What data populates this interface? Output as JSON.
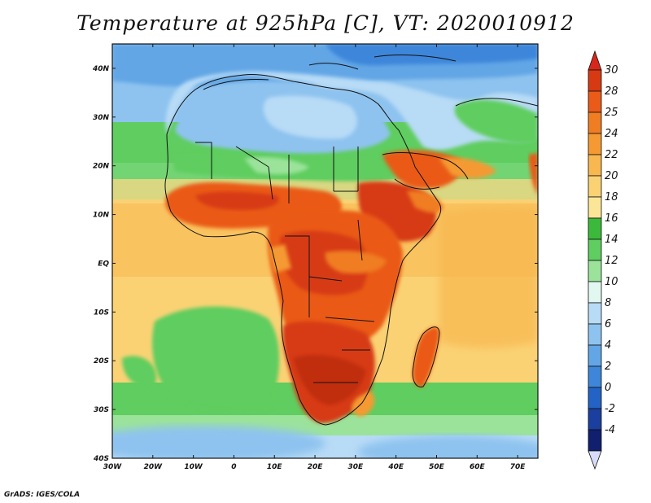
{
  "title": "Temperature at 925hPa [C], VT: 2020010912",
  "credit": "GrADS: IGES/COLA",
  "map": {
    "lon_range": [
      -30,
      75
    ],
    "lat_range": [
      -40,
      45
    ],
    "lat_ticks": [
      {
        "lat": 40,
        "label": "40N"
      },
      {
        "lat": 30,
        "label": "30N"
      },
      {
        "lat": 20,
        "label": "20N"
      },
      {
        "lat": 10,
        "label": "10N"
      },
      {
        "lat": 0,
        "label": "EQ"
      },
      {
        "lat": -10,
        "label": "10S"
      },
      {
        "lat": -20,
        "label": "20S"
      },
      {
        "lat": -30,
        "label": "30S"
      },
      {
        "lat": -40,
        "label": "40S"
      }
    ],
    "lon_ticks": [
      {
        "lon": -30,
        "label": "30W"
      },
      {
        "lon": -20,
        "label": "20W"
      },
      {
        "lon": -10,
        "label": "10W"
      },
      {
        "lon": 0,
        "label": "0"
      },
      {
        "lon": 10,
        "label": "10E"
      },
      {
        "lon": 20,
        "label": "20E"
      },
      {
        "lon": 30,
        "label": "30E"
      },
      {
        "lon": 40,
        "label": "40E"
      },
      {
        "lon": 50,
        "label": "50E"
      },
      {
        "lon": 60,
        "label": "60E"
      },
      {
        "lon": 70,
        "label": "70E"
      }
    ]
  },
  "colorbar": {
    "levels": [
      {
        "label": "30",
        "color": "#d73a12"
      },
      {
        "label": "28",
        "color": "#ea5a18"
      },
      {
        "label": "25",
        "color": "#f07d22"
      },
      {
        "label": "24",
        "color": "#f59a33"
      },
      {
        "label": "22",
        "color": "#f8b74f"
      },
      {
        "label": "20",
        "color": "#fad274"
      },
      {
        "label": "18",
        "color": "#fbe698"
      },
      {
        "label": "16",
        "color": "#3bb93b"
      },
      {
        "label": "14",
        "color": "#5fcd5f"
      },
      {
        "label": "12",
        "color": "#9be39b"
      },
      {
        "label": "10",
        "color": "#e2f7f0"
      },
      {
        "label": "8",
        "color": "#b8dbf6"
      },
      {
        "label": "6",
        "color": "#8ec3ef"
      },
      {
        "label": "4",
        "color": "#62a6e6"
      },
      {
        "label": "2",
        "color": "#3d86da"
      },
      {
        "label": "0",
        "color": "#2463c6"
      },
      {
        "label": "-2",
        "color": "#1a3f9f"
      },
      {
        "label": "-4",
        "color": "#101f6e"
      }
    ],
    "top_color": "#d8271a",
    "bottom_color": "#d9dcf9"
  },
  "colors": {
    "ocean_warm": "#fad274",
    "ocean_temperate": "#5fcd5f",
    "ocean_cold": "#8ec3ef",
    "land_hot": "#ea5a18",
    "land_cool": "#8ec3ef"
  }
}
